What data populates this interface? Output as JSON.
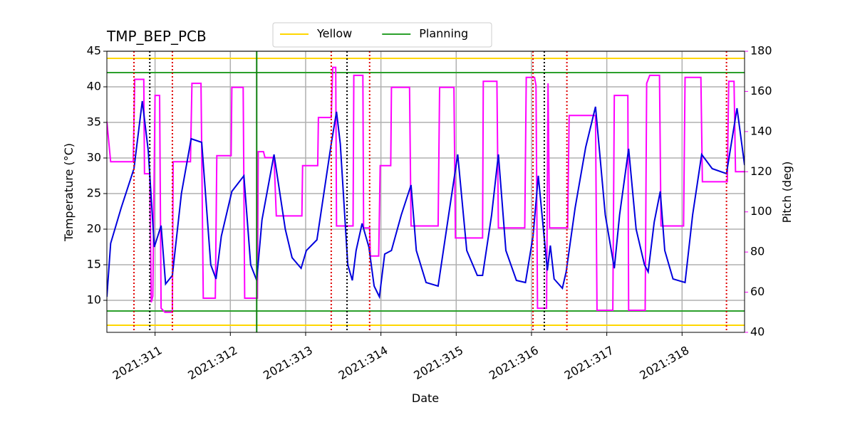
{
  "chart_data": {
    "type": "line",
    "title": "TMP_BEP_PCB",
    "xlabel": "Date",
    "ylabel": "Temperature (°C)",
    "y2label": "Pitch (deg)",
    "xlim": [
      310.36,
      318.83
    ],
    "xticks": [
      {
        "value": 311,
        "label": "2021:311"
      },
      {
        "value": 312,
        "label": "2021:312"
      },
      {
        "value": 313,
        "label": "2021:313"
      },
      {
        "value": 314,
        "label": "2021:314"
      },
      {
        "value": 315,
        "label": "2021:315"
      },
      {
        "value": 316,
        "label": "2021:316"
      },
      {
        "value": 317,
        "label": "2021:317"
      },
      {
        "value": 318,
        "label": "2021:318"
      }
    ],
    "ylim": [
      5.5,
      45
    ],
    "yticks": [
      10,
      15,
      20,
      25,
      30,
      35,
      40,
      45
    ],
    "y2lim": [
      40,
      180
    ],
    "y2ticks": [
      40,
      60,
      80,
      100,
      120,
      140,
      160,
      180
    ],
    "y2color": "#ff00ff",
    "grid": true,
    "legend": "upper center",
    "hlines": [
      {
        "name": "Yellow",
        "color": "#ffd700",
        "values": [
          44,
          6.5
        ]
      },
      {
        "name": "Planning",
        "color": "#2ca02c",
        "values": [
          42,
          8.5
        ]
      }
    ],
    "vlines": [
      {
        "color": "#e00000",
        "style": "dotted",
        "x": [
          310.72,
          311.23,
          313.34,
          313.85,
          316.02,
          316.47,
          318.59
        ]
      },
      {
        "color": "#000000",
        "style": "dotted",
        "x": [
          310.93,
          313.55,
          316.17
        ]
      },
      {
        "color": "#108010",
        "style": "solid",
        "x": [
          312.35
        ]
      }
    ],
    "series": [
      {
        "color": "#0000dd",
        "axis": "y",
        "x": [
          310.36,
          310.41,
          310.55,
          310.72,
          310.83,
          310.91,
          310.99,
          311.08,
          311.14,
          311.23,
          311.35,
          311.48,
          311.62,
          311.74,
          311.81,
          311.88,
          312.02,
          312.18,
          312.27,
          312.35,
          312.42,
          312.58,
          312.73,
          312.82,
          312.94,
          313.01,
          313.15,
          313.34,
          313.41,
          313.46,
          313.56,
          313.62,
          313.67,
          313.75,
          313.84,
          313.91,
          313.98,
          314.05,
          314.14,
          314.27,
          314.4,
          314.47,
          314.6,
          314.76,
          314.9,
          315.02,
          315.14,
          315.28,
          315.35,
          315.47,
          315.56,
          315.66,
          315.8,
          315.92,
          316.02,
          316.09,
          316.21,
          316.25,
          316.3,
          316.41,
          316.46,
          316.58,
          316.72,
          316.85,
          316.98,
          317.1,
          317.17,
          317.29,
          317.39,
          317.5,
          317.55,
          317.63,
          317.71,
          317.77,
          317.88,
          318.04,
          318.14,
          318.26,
          318.4,
          318.59,
          318.73,
          318.83
        ],
        "values": [
          10.5,
          18,
          23,
          28.5,
          38,
          31,
          17.5,
          20.5,
          12.3,
          13.5,
          25,
          32.7,
          32.2,
          15,
          13,
          19,
          25.3,
          27.5,
          15,
          12.8,
          21.3,
          30.5,
          20,
          16,
          14.5,
          17,
          18.5,
          32,
          36.5,
          32,
          15,
          12.8,
          17,
          20.8,
          17.5,
          12,
          10.5,
          16.5,
          17,
          22,
          26.2,
          17,
          12.5,
          12,
          22,
          30.5,
          17,
          13.5,
          13.5,
          22,
          30.5,
          17,
          12.8,
          12.5,
          19,
          27.5,
          14.2,
          17.7,
          13,
          11.7,
          14,
          23,
          31.5,
          37.2,
          22,
          14.5,
          22,
          31.3,
          20,
          15,
          14,
          21,
          25.3,
          17,
          13,
          12.5,
          22,
          30.5,
          28.5,
          27.8,
          37,
          29
        ]
      },
      {
        "color": "#ff00ff",
        "axis": "y2",
        "x": [
          310.36,
          310.41,
          310.71,
          310.73,
          310.85,
          310.86,
          310.93,
          310.95,
          310.97,
          311.0,
          311.06,
          311.08,
          311.13,
          311.23,
          311.24,
          311.47,
          311.49,
          311.61,
          311.64,
          311.8,
          311.82,
          312.01,
          312.02,
          312.17,
          312.19,
          312.36,
          312.37,
          312.44,
          312.46,
          312.58,
          312.61,
          312.95,
          312.96,
          313.16,
          313.17,
          313.34,
          313.36,
          313.4,
          313.41,
          313.63,
          313.64,
          313.76,
          313.77,
          313.85,
          313.86,
          313.97,
          313.99,
          314.13,
          314.14,
          314.38,
          314.4,
          314.76,
          314.78,
          314.97,
          314.99,
          315.35,
          315.36,
          315.54,
          315.56,
          315.91,
          315.93,
          316.04,
          316.06,
          316.08,
          316.2,
          316.22,
          316.24,
          316.48,
          316.5,
          316.85,
          316.87,
          317.08,
          317.1,
          317.28,
          317.29,
          317.51,
          317.53,
          317.57,
          317.7,
          317.72,
          318.02,
          318.04,
          318.25,
          318.27,
          318.6,
          318.62,
          318.69,
          318.71,
          318.83
        ],
        "values": [
          145,
          125,
          125,
          166,
          166,
          119,
          119,
          55,
          58,
          158,
          158,
          52,
          50,
          50,
          125,
          125,
          164,
          164,
          57,
          57,
          128,
          128,
          162,
          162,
          57,
          57,
          130,
          130,
          127,
          127,
          98,
          98,
          123,
          123,
          147,
          147,
          172,
          172,
          93,
          93,
          168,
          168,
          92,
          92,
          78,
          78,
          123,
          123,
          162,
          162,
          93,
          93,
          162,
          162,
          87,
          87,
          165,
          165,
          92,
          92,
          167,
          167,
          163,
          52,
          52,
          164,
          92,
          92,
          148,
          148,
          51,
          51,
          158,
          158,
          51,
          51,
          164,
          168,
          168,
          93,
          93,
          167,
          167,
          115,
          115,
          165,
          165,
          120,
          120
        ]
      }
    ]
  }
}
